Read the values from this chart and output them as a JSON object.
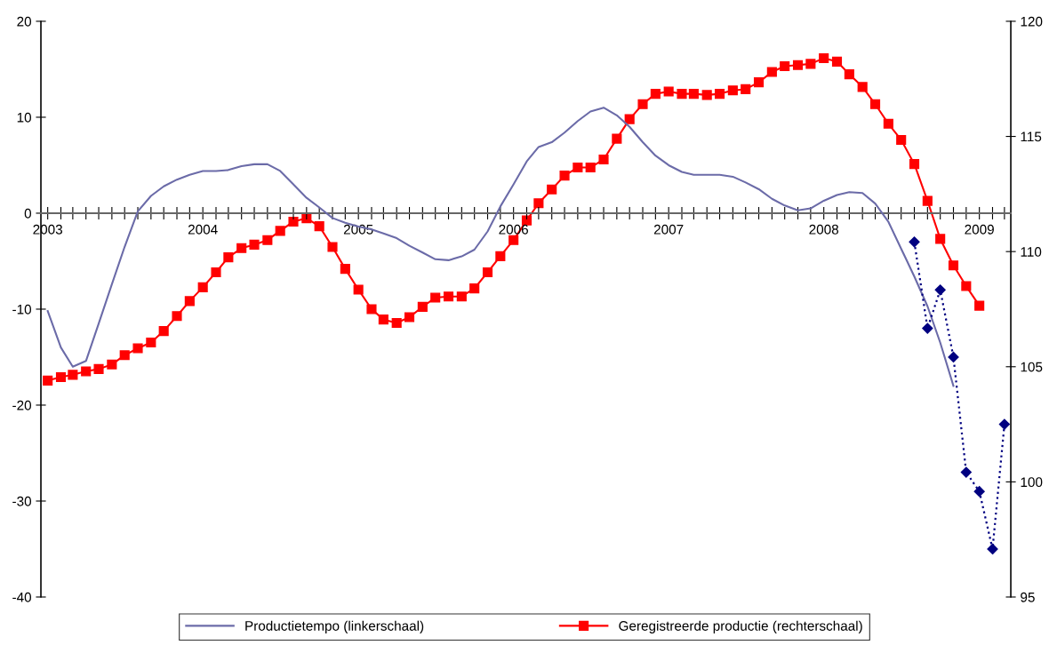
{
  "chart_data": {
    "type": "line",
    "x": [
      "2003-01",
      "2003-02",
      "2003-03",
      "2003-04",
      "2003-05",
      "2003-06",
      "2003-07",
      "2003-08",
      "2003-09",
      "2003-10",
      "2003-11",
      "2003-12",
      "2004-01",
      "2004-02",
      "2004-03",
      "2004-04",
      "2004-05",
      "2004-06",
      "2004-07",
      "2004-08",
      "2004-09",
      "2004-10",
      "2004-11",
      "2004-12",
      "2005-01",
      "2005-02",
      "2005-03",
      "2005-04",
      "2005-05",
      "2005-06",
      "2005-07",
      "2005-08",
      "2005-09",
      "2005-10",
      "2005-11",
      "2005-12",
      "2006-01",
      "2006-02",
      "2006-03",
      "2006-04",
      "2006-05",
      "2006-06",
      "2006-07",
      "2006-08",
      "2006-09",
      "2006-10",
      "2006-11",
      "2006-12",
      "2007-01",
      "2007-02",
      "2007-03",
      "2007-04",
      "2007-05",
      "2007-06",
      "2007-07",
      "2007-08",
      "2007-09",
      "2007-10",
      "2007-11",
      "2007-12",
      "2008-01",
      "2008-02",
      "2008-03",
      "2008-04",
      "2008-05",
      "2008-06",
      "2008-07",
      "2008-08",
      "2008-09",
      "2008-10",
      "2008-11",
      "2008-12",
      "2009-01"
    ],
    "series": [
      {
        "name": "Productietempo (linkerschaal)",
        "color": "#6b6ba8",
        "marker": "none",
        "line_style": "solid",
        "values": [
          -10.2,
          -14.0,
          -16.0,
          -15.4,
          -11.5,
          -7.4,
          -3.5,
          0.2,
          1.8,
          2.8,
          3.5,
          4.0,
          4.4,
          4.4,
          4.5,
          4.9,
          5.1,
          5.1,
          4.4,
          3.0,
          1.6,
          0.6,
          -0.5,
          -1.0,
          -1.4,
          -1.7,
          -2.1,
          -2.6,
          -3.4,
          -4.1,
          -4.8,
          -4.9,
          -4.5,
          -3.8,
          -1.9,
          0.7,
          3.0,
          5.4,
          6.9,
          7.4,
          8.4,
          9.6,
          10.6,
          11.0,
          10.2,
          9.0,
          7.4,
          6.0,
          5.0,
          4.3,
          4.0,
          4.0,
          4.0,
          3.8,
          3.2,
          2.5,
          1.5,
          0.8,
          0.3,
          0.5,
          1.3,
          1.9,
          2.2,
          2.1,
          1.0,
          -0.9,
          -3.7,
          -6.6,
          -9.7,
          -13.5,
          -18.0,
          null,
          null
        ]
      },
      {
        "name": "Geregistreerde productie (rechterschaal)",
        "color": "#ff0000",
        "marker": "square",
        "line_style": "solid",
        "axis": "y2",
        "values": [
          104.4,
          104.55,
          104.65,
          104.8,
          104.9,
          105.1,
          105.5,
          105.8,
          106.05,
          106.55,
          107.2,
          107.85,
          108.45,
          109.1,
          109.75,
          110.15,
          110.3,
          110.5,
          110.9,
          111.3,
          111.45,
          111.1,
          110.2,
          109.25,
          108.35,
          107.5,
          107.05,
          106.9,
          107.15,
          107.6,
          108.0,
          108.05,
          108.05,
          108.4,
          109.1,
          109.8,
          110.5,
          111.35,
          112.1,
          112.7,
          113.3,
          113.65,
          113.65,
          114.0,
          114.9,
          115.75,
          116.4,
          116.85,
          116.95,
          116.85,
          116.85,
          116.8,
          116.85,
          117.0,
          117.05,
          117.35,
          117.8,
          118.05,
          118.1,
          118.15,
          118.4,
          118.25,
          117.7,
          117.15,
          116.4,
          115.55,
          114.85,
          113.8,
          112.2,
          110.55,
          109.4,
          108.5,
          107.65
        ]
      },
      {
        "color": "#000080",
        "marker": "diamond",
        "line_style": "dotted",
        "x": [
          "2008-08",
          "2008-09",
          "2008-10",
          "2008-11",
          "2008-12",
          "2009-01",
          "2009-02",
          "2009-03"
        ],
        "values": [
          -3,
          -12,
          -8,
          -15,
          -27,
          -29,
          -35,
          -22
        ]
      }
    ],
    "xlim": [
      "2002-12-16",
      "2009-03-16"
    ],
    "xticks": [
      {
        "value": "2003-01",
        "label": "2003"
      },
      {
        "value": "2003-02",
        "label": null
      },
      {
        "value": "2003-03",
        "label": null
      },
      {
        "value": "2003-04",
        "label": null
      },
      {
        "value": "2003-05",
        "label": null
      },
      {
        "value": "2003-06",
        "label": null
      },
      {
        "value": "2003-07",
        "label": null
      },
      {
        "value": "2003-08",
        "label": null
      },
      {
        "value": "2003-09",
        "label": null
      },
      {
        "value": "2003-10",
        "label": null
      },
      {
        "value": "2003-11",
        "label": null
      },
      {
        "value": "2003-12",
        "label": null
      },
      {
        "value": "2004-01",
        "label": "2004"
      },
      {
        "value": "2004-02",
        "label": null
      },
      {
        "value": "2004-03",
        "label": null
      },
      {
        "value": "2004-04",
        "label": null
      },
      {
        "value": "2004-05",
        "label": null
      },
      {
        "value": "2004-06",
        "label": null
      },
      {
        "value": "2004-07",
        "label": null
      },
      {
        "value": "2004-08",
        "label": null
      },
      {
        "value": "2004-09",
        "label": null
      },
      {
        "value": "2004-10",
        "label": null
      },
      {
        "value": "2004-11",
        "label": null
      },
      {
        "value": "2004-12",
        "label": null
      },
      {
        "value": "2005-01",
        "label": "2005"
      },
      {
        "value": "2005-02",
        "label": null
      },
      {
        "value": "2005-03",
        "label": null
      },
      {
        "value": "2005-04",
        "label": null
      },
      {
        "value": "2005-05",
        "label": null
      },
      {
        "value": "2005-06",
        "label": null
      },
      {
        "value": "2005-07",
        "label": null
      },
      {
        "value": "2005-08",
        "label": null
      },
      {
        "value": "2005-09",
        "label": null
      },
      {
        "value": "2005-10",
        "label": null
      },
      {
        "value": "2005-11",
        "label": null
      },
      {
        "value": "2005-12",
        "label": null
      },
      {
        "value": "2006-01",
        "label": "2006"
      },
      {
        "value": "2006-02",
        "label": null
      },
      {
        "value": "2006-03",
        "label": null
      },
      {
        "value": "2006-04",
        "label": null
      },
      {
        "value": "2006-05",
        "label": null
      },
      {
        "value": "2006-06",
        "label": null
      },
      {
        "value": "2006-07",
        "label": null
      },
      {
        "value": "2006-08",
        "label": null
      },
      {
        "value": "2006-09",
        "label": null
      },
      {
        "value": "2006-10",
        "label": null
      },
      {
        "value": "2006-11",
        "label": null
      },
      {
        "value": "2006-12",
        "label": null
      },
      {
        "value": "2007-01",
        "label": "2007"
      },
      {
        "value": "2007-02",
        "label": null
      },
      {
        "value": "2007-03",
        "label": null
      },
      {
        "value": "2007-04",
        "label": null
      },
      {
        "value": "2007-05",
        "label": null
      },
      {
        "value": "2007-06",
        "label": null
      },
      {
        "value": "2007-07",
        "label": null
      },
      {
        "value": "2007-08",
        "label": null
      },
      {
        "value": "2007-09",
        "label": null
      },
      {
        "value": "2007-10",
        "label": null
      },
      {
        "value": "2007-11",
        "label": null
      },
      {
        "value": "2007-12",
        "label": null
      },
      {
        "value": "2008-01",
        "label": "2008"
      },
      {
        "value": "2008-02",
        "label": null
      },
      {
        "value": "2008-03",
        "label": null
      },
      {
        "value": "2008-04",
        "label": null
      },
      {
        "value": "2008-05",
        "label": null
      },
      {
        "value": "2008-06",
        "label": null
      },
      {
        "value": "2008-07",
        "label": null
      },
      {
        "value": "2008-08",
        "label": null
      },
      {
        "value": "2008-09",
        "label": null
      },
      {
        "value": "2008-10",
        "label": null
      },
      {
        "value": "2008-11",
        "label": null
      },
      {
        "value": "2008-12",
        "label": null
      },
      {
        "value": "2009-01",
        "label": "2009"
      },
      {
        "value": "2009-02",
        "label": null
      },
      {
        "value": "2009-03",
        "label": null
      }
    ],
    "ylim": [
      -40,
      20
    ],
    "yticks": [
      -40,
      -30,
      -20,
      -10,
      0,
      10,
      20
    ],
    "y2lim": [
      95,
      120
    ],
    "y2ticks": [
      95,
      100,
      105,
      110,
      115,
      120
    ],
    "grid": false,
    "legend": "bottom"
  }
}
